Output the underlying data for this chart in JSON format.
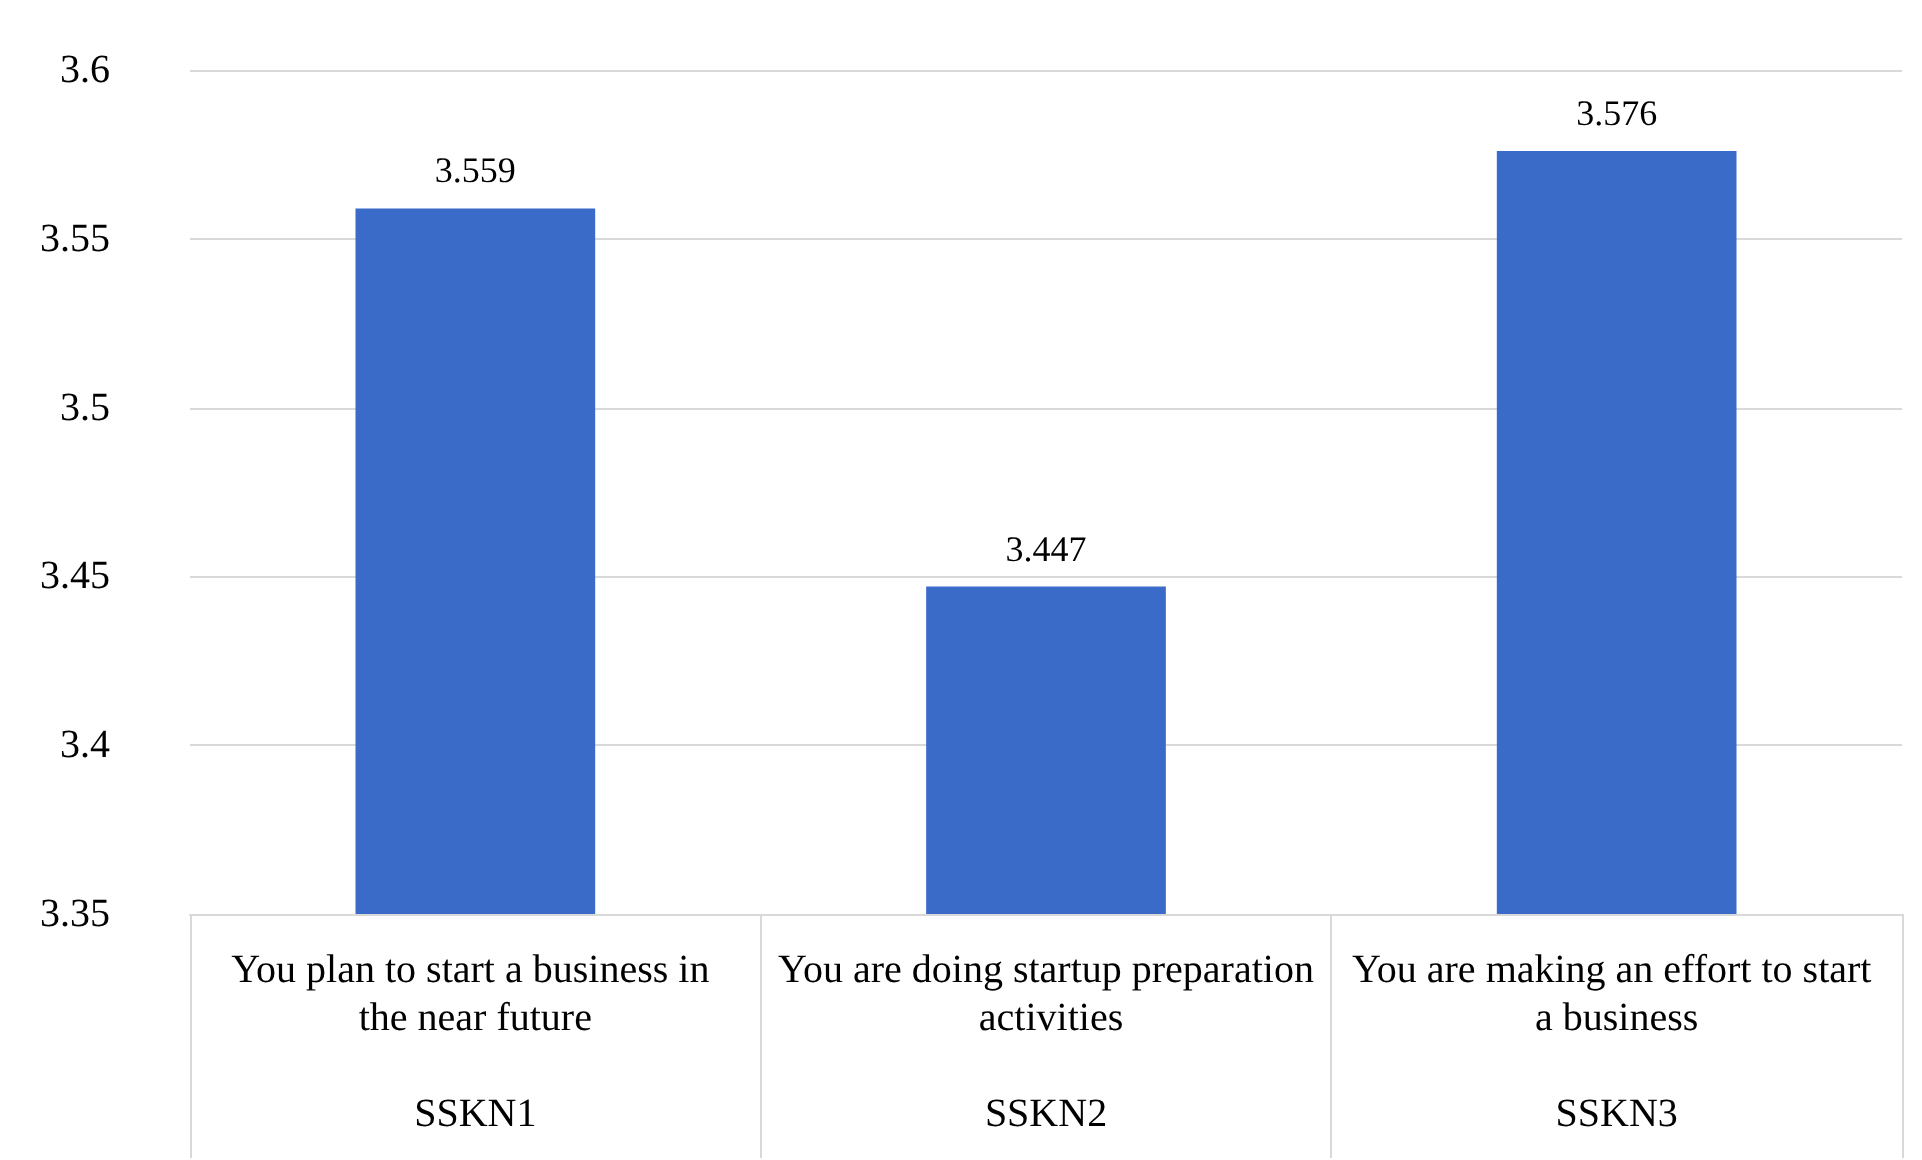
{
  "chart_data": {
    "type": "bar",
    "categories": [
      "You plan to start a business in the near future\nSSKN1",
      "You are doing startup preparation activities\nSSKN2",
      "You are making an effort to start a business\nSSKN3"
    ],
    "values": [
      3.559,
      3.447,
      3.576
    ],
    "color": "#3a6bc9",
    "ylim": [
      3.35,
      3.6
    ],
    "yticks": [
      3.35,
      3.4,
      3.45,
      3.5,
      3.55,
      3.6
    ],
    "grid": "y",
    "data_labels": true
  }
}
